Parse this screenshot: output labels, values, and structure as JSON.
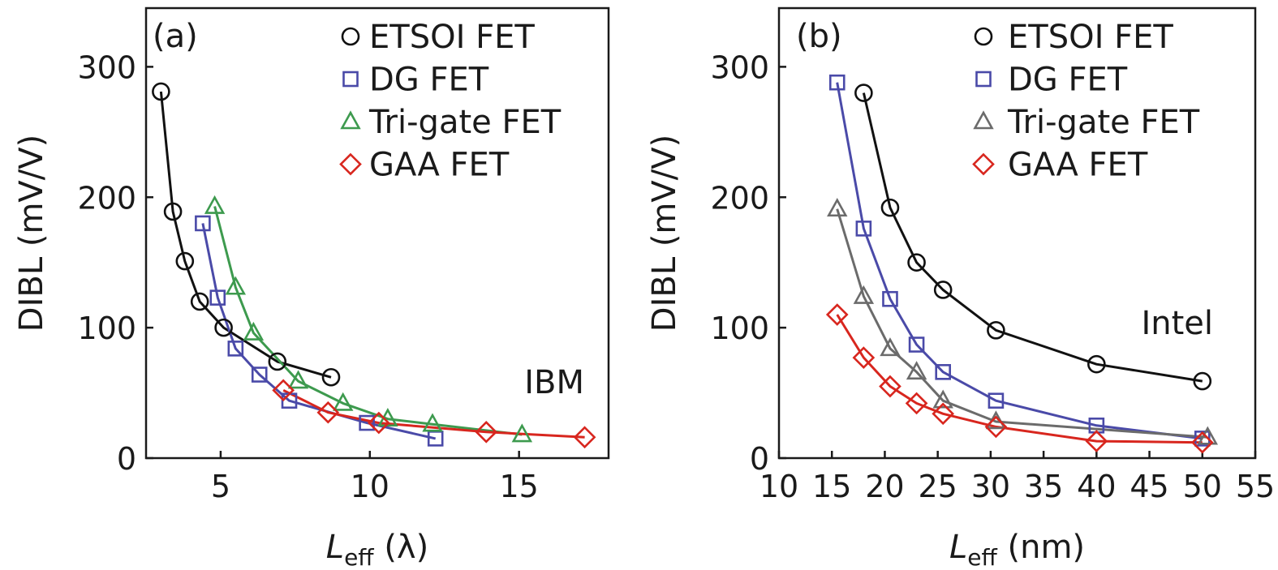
{
  "chart_data": [
    {
      "type": "line",
      "panel_label": "(a)",
      "annotation": "IBM",
      "xlabel_main": "L",
      "xlabel_sub": "eff",
      "xlabel_unit": "(λ)",
      "ylabel": "DIBL (mV/V)",
      "xlim": [
        2.5,
        18
      ],
      "ylim": [
        0,
        345
      ],
      "xticks": [
        5,
        10,
        15
      ],
      "yticks": [
        0,
        100,
        200,
        300
      ],
      "legend_position": "top-right",
      "series": [
        {
          "name": "ETSOI FET",
          "marker": "circle",
          "color": "#111111",
          "x": [
            3.0,
            3.4,
            3.8,
            4.3,
            5.1,
            6.9,
            8.7
          ],
          "y": [
            281,
            189,
            151,
            120,
            100,
            74,
            62
          ]
        },
        {
          "name": "DG FET",
          "marker": "square",
          "color": "#4a4aa8",
          "x": [
            4.4,
            4.9,
            5.5,
            6.3,
            7.3,
            9.9,
            12.2
          ],
          "y": [
            180,
            123,
            84,
            64,
            44,
            27,
            15
          ]
        },
        {
          "name": "Tri-gate FET",
          "marker": "triangle",
          "color": "#3d9a4e",
          "x": [
            4.8,
            5.5,
            6.1,
            7.6,
            9.1,
            10.6,
            12.1,
            15.1
          ],
          "y": [
            193,
            131,
            96,
            59,
            42,
            30,
            26,
            18
          ]
        },
        {
          "name": "GAA FET",
          "marker": "diamond",
          "color": "#d8261e",
          "x": [
            7.1,
            8.6,
            10.3,
            13.9,
            17.2
          ],
          "y": [
            52,
            35,
            27,
            20,
            16
          ]
        }
      ]
    },
    {
      "type": "line",
      "panel_label": "(b)",
      "annotation": "Intel",
      "xlabel_main": "L",
      "xlabel_sub": "eff",
      "xlabel_unit": "(nm)",
      "ylabel": "DIBL (mV/V)",
      "xlim": [
        10,
        55
      ],
      "ylim": [
        0,
        345
      ],
      "xticks": [
        10,
        15,
        20,
        25,
        30,
        35,
        40,
        45,
        50,
        55
      ],
      "yticks": [
        0,
        100,
        200,
        300
      ],
      "legend_position": "top-right",
      "series": [
        {
          "name": "ETSOI FET",
          "marker": "circle",
          "color": "#111111",
          "x": [
            18,
            20.5,
            23,
            25.5,
            30.5,
            40,
            50
          ],
          "y": [
            280,
            192,
            150,
            129,
            98,
            72,
            59
          ]
        },
        {
          "name": "DG FET",
          "marker": "square",
          "color": "#4a4aa8",
          "x": [
            15.5,
            18,
            20.5,
            23,
            25.5,
            30.5,
            40,
            50
          ],
          "y": [
            288,
            176,
            122,
            87,
            66,
            44,
            25,
            15
          ]
        },
        {
          "name": "Tri-gate FET",
          "marker": "triangle",
          "color": "#6b6b6b",
          "x": [
            15.5,
            18,
            20.5,
            23,
            25.5,
            30.5,
            50.5
          ],
          "y": [
            191,
            124,
            84,
            66,
            44,
            28,
            16
          ]
        },
        {
          "name": "GAA FET",
          "marker": "diamond",
          "color": "#d8261e",
          "x": [
            15.5,
            18,
            20.5,
            23,
            25.5,
            30.5,
            40,
            50
          ],
          "y": [
            110,
            77,
            55,
            42,
            34,
            24,
            13,
            12
          ]
        }
      ]
    }
  ]
}
